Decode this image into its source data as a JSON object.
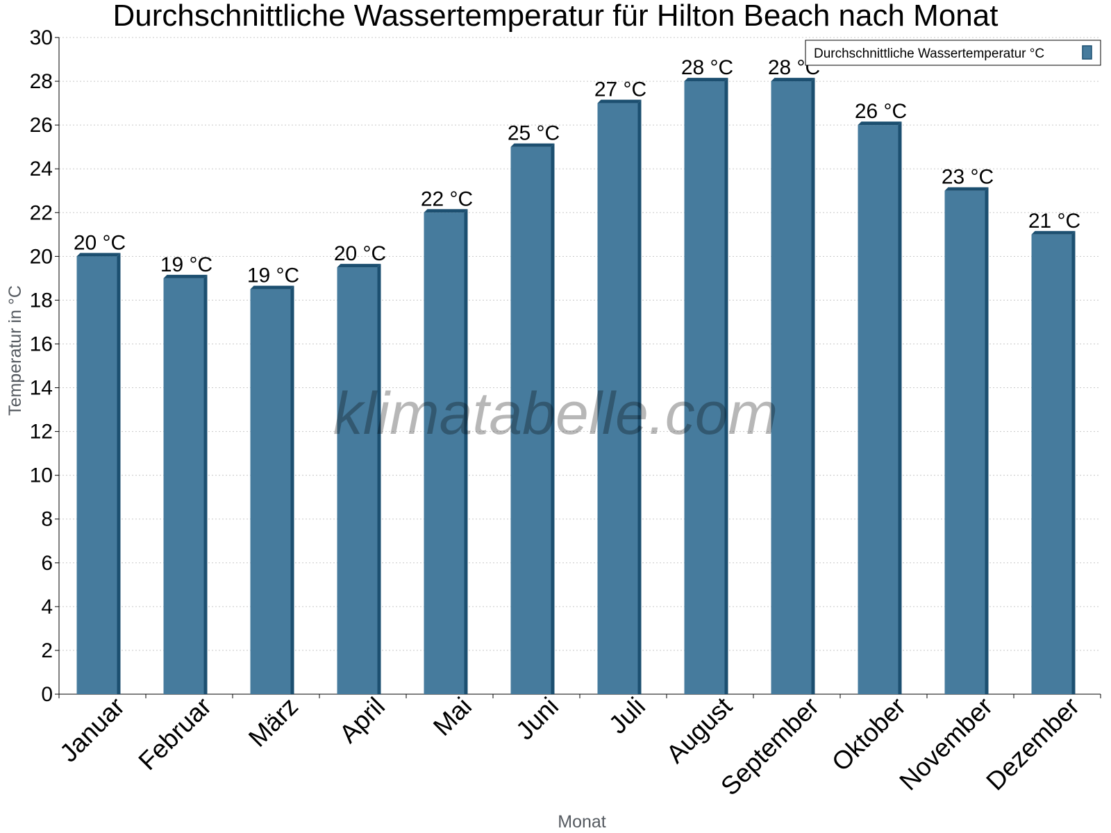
{
  "chart_data": {
    "type": "bar",
    "title": "Durchschnittliche Wassertemperatur für Hilton Beach nach Monat",
    "xlabel": "Monat",
    "ylabel": "Temperatur in °C",
    "ylim": [
      0,
      30
    ],
    "yticks": [
      0,
      2,
      4,
      6,
      8,
      10,
      12,
      14,
      16,
      18,
      20,
      22,
      24,
      26,
      28,
      30
    ],
    "grid": true,
    "legend_position": "top-right",
    "categories": [
      "Januar",
      "Februar",
      "März",
      "April",
      "Mai",
      "Juni",
      "Juli",
      "August",
      "September",
      "Oktober",
      "November",
      "Dezember"
    ],
    "series": [
      {
        "name": "Durchschnittliche Wassertemperatur °C",
        "values": [
          20,
          19,
          18.5,
          19.5,
          22,
          25,
          27,
          28,
          28,
          26,
          23,
          21
        ],
        "data_labels": [
          "20 °C",
          "19 °C",
          "19 °C",
          "20 °C",
          "22 °C",
          "25 °C",
          "27 °C",
          "28 °C",
          "28 °C",
          "26 °C",
          "23 °C",
          "21 °C"
        ]
      }
    ],
    "colors": {
      "bar_fill": "#467b9d",
      "bar_side": "#1c4f70",
      "grid": "#c8c8c8",
      "axis": "#000000"
    }
  },
  "watermark": "klimatabelle.com"
}
